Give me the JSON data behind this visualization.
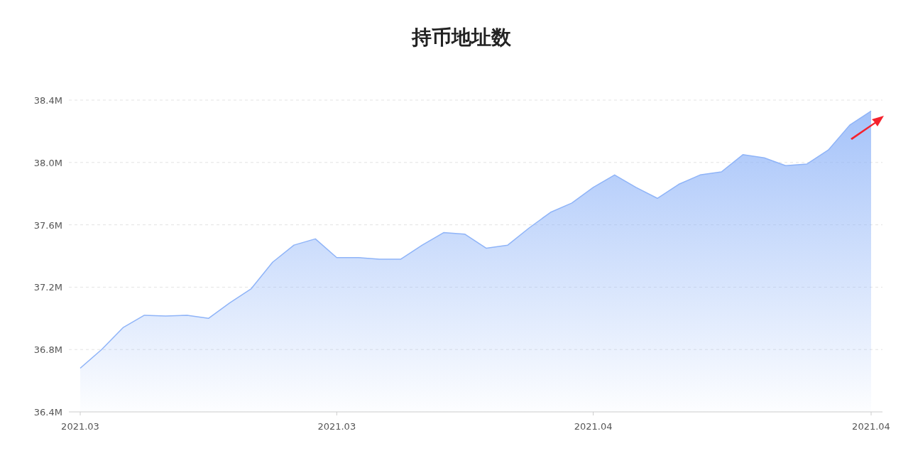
{
  "chart_data": {
    "type": "area",
    "title": "持币地址数",
    "categories": [
      "2021.03",
      null,
      null,
      null,
      null,
      null,
      null,
      null,
      null,
      null,
      null,
      null,
      "2021.03",
      null,
      null,
      null,
      null,
      null,
      null,
      null,
      null,
      null,
      null,
      null,
      "2021.04",
      null,
      null,
      null,
      null,
      null,
      null,
      null,
      null,
      null,
      null,
      null,
      null,
      "2021.04"
    ],
    "series": [
      {
        "color": "#8fb4f8",
        "values": [
          36.68,
          36.8,
          36.94,
          37.02,
          37.015,
          37.02,
          37.0,
          37.1,
          37.19,
          37.36,
          37.47,
          37.51,
          37.39,
          37.39,
          37.38,
          37.38,
          37.47,
          37.55,
          37.54,
          37.45,
          37.47,
          37.58,
          37.68,
          37.74,
          37.84,
          37.92,
          37.84,
          37.77,
          37.86,
          37.92,
          37.94,
          38.05,
          38.03,
          37.98,
          37.99,
          38.08,
          38.24,
          38.33
        ]
      }
    ],
    "ylim": [
      36.4,
      38.4
    ],
    "yticks": [
      {
        "value": 36.4,
        "label": "36.4M"
      },
      {
        "value": 36.8,
        "label": "36.8M"
      },
      {
        "value": 37.2,
        "label": "37.2M"
      },
      {
        "value": 37.6,
        "label": "37.6M"
      },
      {
        "value": 38.0,
        "label": "38.0M"
      },
      {
        "value": 38.4,
        "label": "38.4M"
      }
    ],
    "grid": "y",
    "marker": "none"
  }
}
